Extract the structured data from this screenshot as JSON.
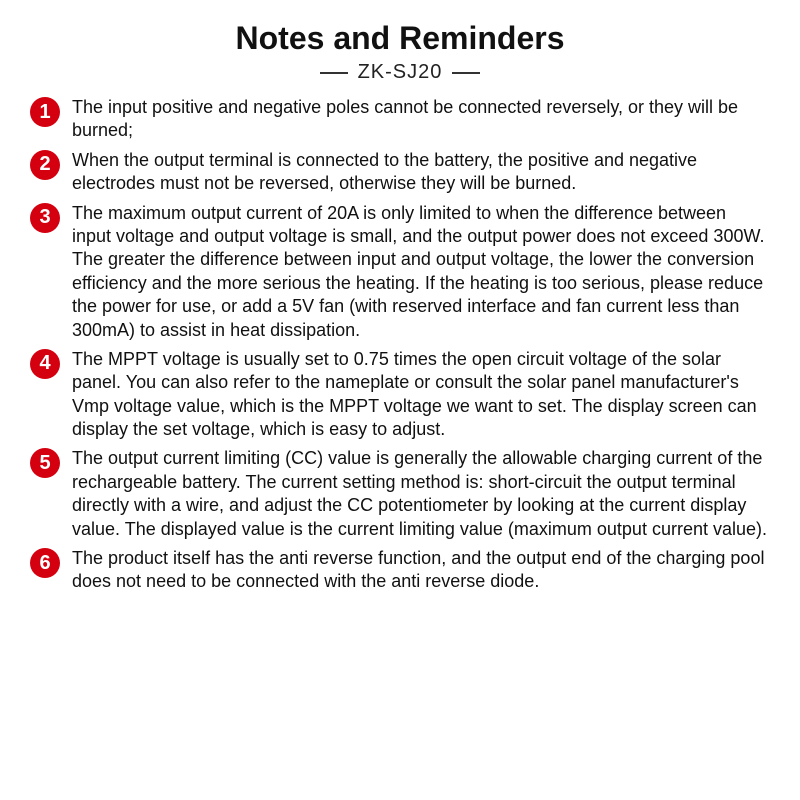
{
  "title": "Notes and Reminders",
  "subtitle": "ZK-SJ20",
  "colors": {
    "bullet_bg": "#d4000f",
    "bullet_text": "#ffffff",
    "text": "#111111",
    "background": "#ffffff"
  },
  "typography": {
    "title_fontsize": 32,
    "subtitle_fontsize": 20,
    "body_fontsize": 18,
    "line_height": 1.3
  },
  "items": [
    {
      "n": "1",
      "text": "The input positive and negative poles cannot be connected reversely, or they will be burned;"
    },
    {
      "n": "2",
      "text": "When the output terminal is connected to the battery, the positive and negative electrodes must not be reversed, otherwise they will be burned."
    },
    {
      "n": "3",
      "text": "The maximum output current of 20A is only limited to when the difference between input voltage and output voltage is small, and the output power does not exceed 300W. The greater the difference between input and output voltage, the lower the conversion efficiency and the more serious the heating. If the heating is too serious, please reduce the power for use, or add a 5V fan (with reserved interface and fan current less than 300mA) to assist in heat dissipation."
    },
    {
      "n": "4",
      "text": "The MPPT voltage is usually set to 0.75 times the open circuit voltage of the solar panel. You can also refer to the nameplate or consult the solar panel manufacturer's Vmp voltage value, which is the MPPT voltage we want to set. The display screen can display the set voltage, which is easy to adjust."
    },
    {
      "n": "5",
      "text": "The output current limiting (CC) value is generally the allowable charging current of the rechargeable battery. The current setting method is: short-circuit the output terminal directly with a wire, and adjust the CC potentiometer by looking at the current display value. The displayed value is the current limiting value (maximum output current value)."
    },
    {
      "n": "6",
      "text": "The product itself has the anti reverse function, and the output end of the charging pool does not need to be connected with the anti reverse diode."
    }
  ]
}
